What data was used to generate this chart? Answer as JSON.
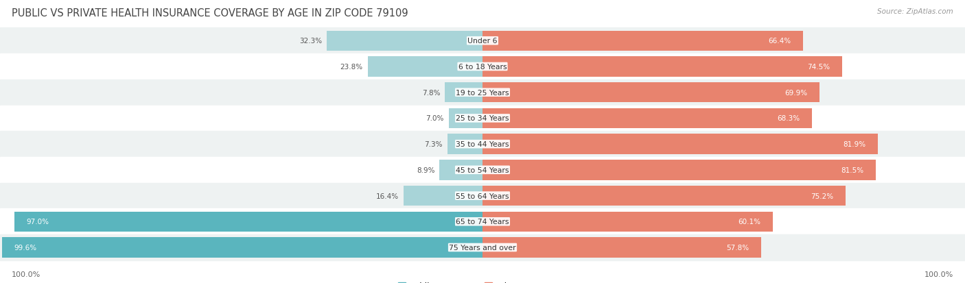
{
  "title": "PUBLIC VS PRIVATE HEALTH INSURANCE COVERAGE BY AGE IN ZIP CODE 79109",
  "source": "Source: ZipAtlas.com",
  "categories": [
    "Under 6",
    "6 to 18 Years",
    "19 to 25 Years",
    "25 to 34 Years",
    "35 to 44 Years",
    "45 to 54 Years",
    "55 to 64 Years",
    "65 to 74 Years",
    "75 Years and over"
  ],
  "public_values": [
    32.3,
    23.8,
    7.8,
    7.0,
    7.3,
    8.9,
    16.4,
    97.0,
    99.6
  ],
  "private_values": [
    66.4,
    74.5,
    69.9,
    68.3,
    81.9,
    81.5,
    75.2,
    60.1,
    57.8
  ],
  "public_color": "#5ab5be",
  "private_color": "#e8836e",
  "public_color_light": "#a8d4d8",
  "private_color_light": "#f0b3a0",
  "row_bg_light": "#eef2f2",
  "row_bg_white": "#ffffff",
  "title_color": "#444444",
  "source_color": "#999999",
  "text_dark": "#555555",
  "text_white": "#ffffff",
  "legend_public": "Public Insurance",
  "legend_private": "Private Insurance",
  "axis_label": "100.0%",
  "xlim": 100,
  "center_label_bg": "#ffffff"
}
